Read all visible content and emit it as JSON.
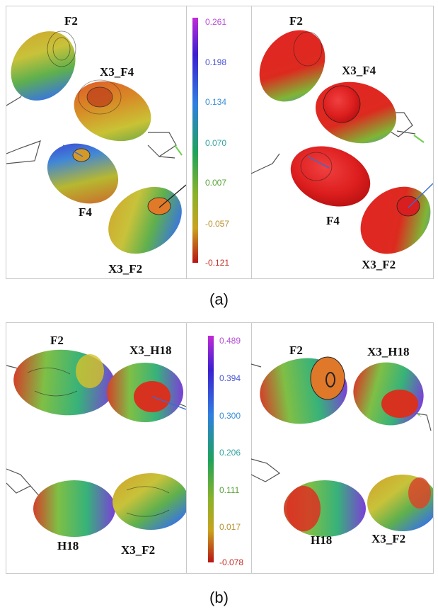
{
  "panel_a": {
    "caption": "(a)",
    "left_labels": {
      "top": "F2",
      "upper_right": "X3_F4",
      "middle": "F4",
      "bottom": "X3_F2"
    },
    "right_labels": {
      "top": "F2",
      "upper_right": "X3_F4",
      "middle": "F4",
      "bottom": "X3_F2"
    },
    "scale": {
      "ticks": [
        "0.261",
        "0.198",
        "0.134",
        "0.070",
        "0.007",
        "-0.057",
        "-0.121"
      ],
      "tick_colors": [
        "#b94fd9",
        "#4b55d6",
        "#3a8ed9",
        "#35a3a0",
        "#5aa43a",
        "#b8922f",
        "#c4302a"
      ]
    }
  },
  "panel_b": {
    "caption": "(b)",
    "left_labels": {
      "top_left": "F2",
      "top_right": "X3_H18",
      "bottom_left": "H18",
      "bottom_right": "X3_F2"
    },
    "right_labels": {
      "top_left": "F2",
      "top_right": "X3_H18",
      "bottom_left": "H18",
      "bottom_right": "X3_F2"
    },
    "scale": {
      "ticks": [
        "0.489",
        "0.394",
        "0.300",
        "0.206",
        "0.111",
        "0.017",
        "-0.078"
      ],
      "tick_colors": [
        "#b94fd9",
        "#4b55d6",
        "#3a8ed9",
        "#35a3a0",
        "#5aa43a",
        "#b8922f",
        "#c4302a"
      ]
    }
  }
}
